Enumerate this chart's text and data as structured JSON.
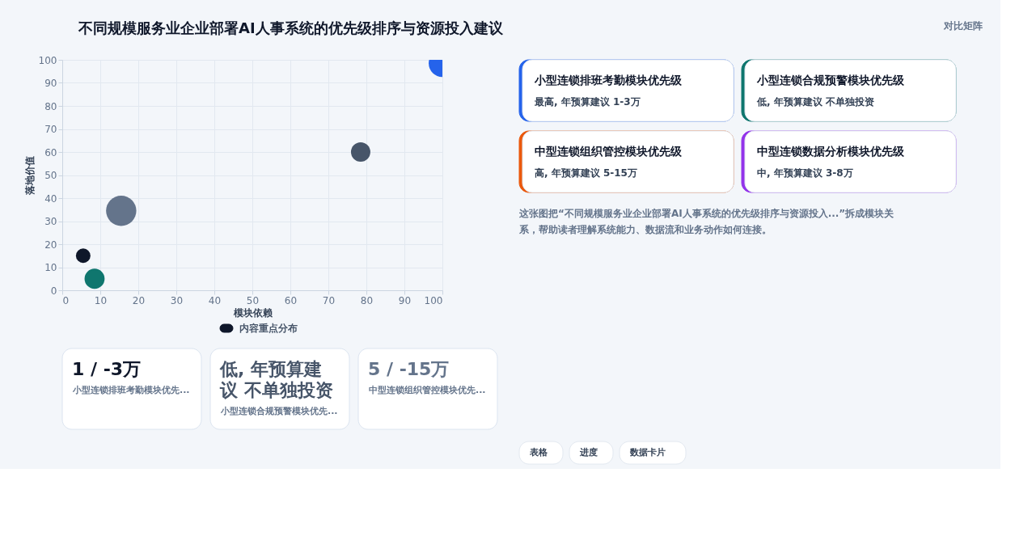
{
  "chart_data": [
    {
      "type": "other",
      "title": "不同规模服务业企业部署AI人事系统的优先级排序与资源投入建议",
      "subtitle": "对比矩阵"
    },
    {
      "type": "bubble",
      "xlabel": "模块依赖",
      "ylabel": "落地价值",
      "x": [
        5.5,
        8.5,
        15.5,
        78.5,
        100
      ],
      "series": [
        {
          "name": "内容重点分布",
          "color": "#0f172a",
          "colors": [
            "#0f172a",
            "#0f766e",
            "#64748b",
            "#475569",
            "#2563eb"
          ],
          "values": [
            15,
            5,
            34.5,
            60,
            98.5
          ],
          "sizes": [
            0.23,
            0.44,
            1,
            0.41,
            0.82
          ]
        }
      ],
      "xlim": [
        0,
        100
      ],
      "ylim": [
        0,
        100
      ],
      "xticks": [
        0,
        10,
        20,
        30,
        40,
        50,
        60,
        70,
        80,
        90,
        100
      ],
      "yticks": [
        0,
        10,
        20,
        30,
        40,
        50,
        60,
        70,
        80,
        90,
        100
      ],
      "grid": true,
      "legend": "bottom"
    },
    {
      "type": "other",
      "colors": [
        "#2563eb",
        "#0f766e",
        "#ea580c",
        "#9333ea"
      ],
      "annotations": [
        "小型连锁排班考勤模块优先级",
        "最高, 年预算建议 1-3万",
        "小型连锁合规预警模块优先级",
        "低, 年预算建议 不单独投资",
        "中型连锁组织管控模块优先级",
        "高, 年预算建议 5-15万",
        "中型连锁数据分析模块优先级",
        "中, 年预算建议 3-8万",
        "这张图把“不同规模服务业企业部署AI人事系统的优先级排序与资源投入...”拆成模块关系，帮助读者理解系统能力、数据流和业务动作如何连接。",
        "表格",
        "进度",
        "数据卡片"
      ]
    },
    {
      "type": "other",
      "colors": [
        "#0f172a",
        "#475569",
        "#64748b"
      ],
      "annotations": [
        "1 / -3万",
        "小型连锁排班考勤模块优先...",
        "低, 年预算建议 不单独投资",
        "小型连锁合规预警模块优先...",
        "5 / -15万",
        "中型连锁组织管控模块优先..."
      ]
    }
  ]
}
